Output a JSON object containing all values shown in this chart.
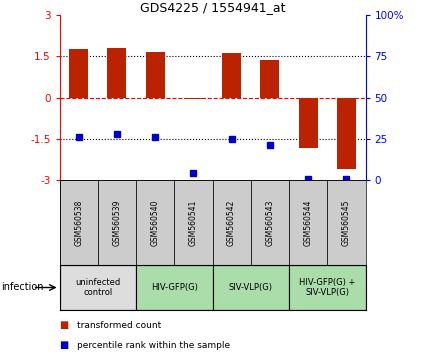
{
  "title": "GDS4225 / 1554941_at",
  "samples": [
    "GSM560538",
    "GSM560539",
    "GSM560540",
    "GSM560541",
    "GSM560542",
    "GSM560543",
    "GSM560544",
    "GSM560545"
  ],
  "bar_values": [
    1.75,
    1.8,
    1.65,
    -0.05,
    1.62,
    1.38,
    -1.85,
    -2.6
  ],
  "dot_values": [
    -1.42,
    -1.32,
    -1.45,
    -2.75,
    -1.52,
    -1.72,
    -2.95,
    -2.95
  ],
  "bar_color": "#bb2200",
  "dot_color": "#0000cc",
  "ylim": [
    -3,
    3
  ],
  "yticks_left": [
    -3,
    -1.5,
    0,
    1.5,
    3
  ],
  "yticks_right": [
    0,
    25,
    50,
    75,
    100
  ],
  "hlines": [
    -1.5,
    0,
    1.5
  ],
  "hline_styles": [
    "dotted",
    "dashed",
    "dotted"
  ],
  "hline_colors": [
    "black",
    "red",
    "black"
  ],
  "infection_groups": [
    {
      "label": "uninfected\ncontrol",
      "start": 0,
      "end": 2,
      "color": "#dddddd"
    },
    {
      "label": "HIV-GFP(G)",
      "start": 2,
      "end": 4,
      "color": "#aaddaa"
    },
    {
      "label": "SIV-VLP(G)",
      "start": 4,
      "end": 6,
      "color": "#aaddaa"
    },
    {
      "label": "HIV-GFP(G) +\nSIV-VLP(G)",
      "start": 6,
      "end": 8,
      "color": "#aaddaa"
    }
  ],
  "legend_items": [
    {
      "label": "transformed count",
      "color": "#bb2200"
    },
    {
      "label": "percentile rank within the sample",
      "color": "#0000cc"
    }
  ],
  "infection_label": "infection",
  "background_color": "#ffffff"
}
